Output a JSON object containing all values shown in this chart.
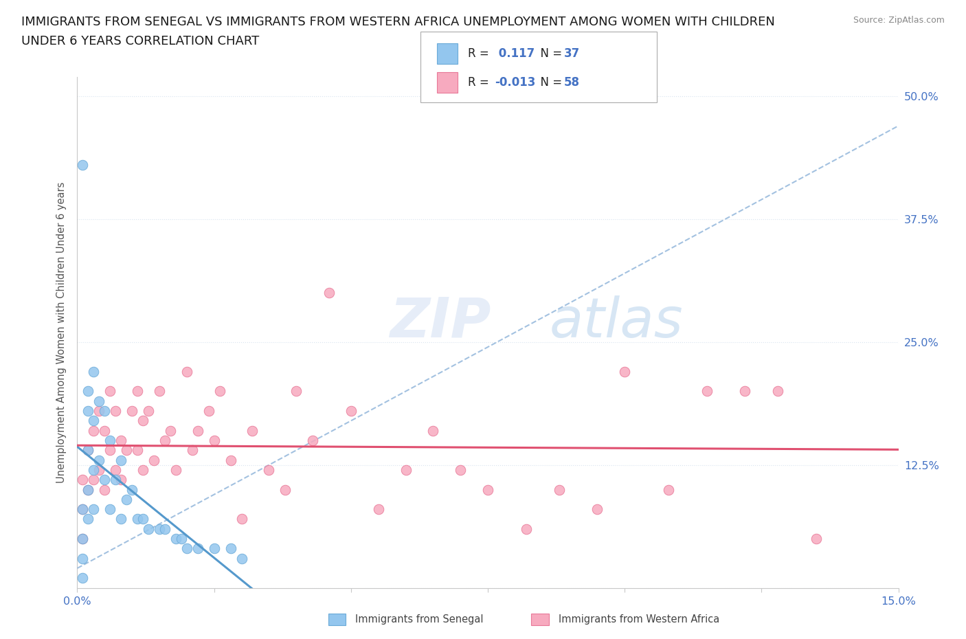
{
  "title_line1": "IMMIGRANTS FROM SENEGAL VS IMMIGRANTS FROM WESTERN AFRICA UNEMPLOYMENT AMONG WOMEN WITH CHILDREN",
  "title_line2": "UNDER 6 YEARS CORRELATION CHART",
  "source": "Source: ZipAtlas.com",
  "ylabel": "Unemployment Among Women with Children Under 6 years",
  "xlim": [
    0.0,
    0.15
  ],
  "ylim": [
    0.0,
    0.52
  ],
  "xtick_positions": [
    0.0,
    0.025,
    0.05,
    0.075,
    0.1,
    0.125,
    0.15
  ],
  "xtick_labels": [
    "0.0%",
    "",
    "",
    "",
    "",
    "",
    "15.0%"
  ],
  "ytick_positions": [
    0.0,
    0.125,
    0.25,
    0.375,
    0.5
  ],
  "ytick_labels": [
    "",
    "12.5%",
    "25.0%",
    "37.5%",
    "50.0%"
  ],
  "senegal_color": "#93C6EE",
  "senegal_edge": "#6AAAD8",
  "western_africa_color": "#F7AABF",
  "western_africa_edge": "#E87898",
  "trend_senegal_solid_color": "#5599CC",
  "trend_dashed_color": "#99BBDD",
  "trend_western_africa_color": "#E05070",
  "R_senegal": 0.117,
  "N_senegal": 37,
  "R_western_africa": -0.013,
  "N_western_africa": 58,
  "senegal_x": [
    0.001,
    0.001,
    0.001,
    0.001,
    0.001,
    0.002,
    0.002,
    0.002,
    0.002,
    0.002,
    0.003,
    0.003,
    0.003,
    0.003,
    0.004,
    0.004,
    0.005,
    0.005,
    0.006,
    0.006,
    0.007,
    0.008,
    0.008,
    0.009,
    0.01,
    0.011,
    0.012,
    0.013,
    0.015,
    0.016,
    0.018,
    0.019,
    0.02,
    0.022,
    0.025,
    0.028,
    0.03
  ],
  "senegal_y": [
    0.43,
    0.08,
    0.05,
    0.03,
    0.01,
    0.2,
    0.18,
    0.14,
    0.1,
    0.07,
    0.22,
    0.17,
    0.12,
    0.08,
    0.19,
    0.13,
    0.18,
    0.11,
    0.15,
    0.08,
    0.11,
    0.13,
    0.07,
    0.09,
    0.1,
    0.07,
    0.07,
    0.06,
    0.06,
    0.06,
    0.05,
    0.05,
    0.04,
    0.04,
    0.04,
    0.04,
    0.03
  ],
  "western_africa_x": [
    0.001,
    0.001,
    0.001,
    0.002,
    0.002,
    0.003,
    0.003,
    0.004,
    0.004,
    0.005,
    0.005,
    0.006,
    0.006,
    0.007,
    0.007,
    0.008,
    0.008,
    0.009,
    0.01,
    0.011,
    0.011,
    0.012,
    0.012,
    0.013,
    0.014,
    0.015,
    0.016,
    0.017,
    0.018,
    0.02,
    0.021,
    0.022,
    0.024,
    0.025,
    0.026,
    0.028,
    0.03,
    0.032,
    0.035,
    0.038,
    0.04,
    0.043,
    0.046,
    0.05,
    0.055,
    0.06,
    0.065,
    0.07,
    0.075,
    0.082,
    0.088,
    0.095,
    0.1,
    0.108,
    0.115,
    0.122,
    0.128,
    0.135
  ],
  "western_africa_y": [
    0.11,
    0.08,
    0.05,
    0.14,
    0.1,
    0.16,
    0.11,
    0.18,
    0.12,
    0.16,
    0.1,
    0.2,
    0.14,
    0.18,
    0.12,
    0.15,
    0.11,
    0.14,
    0.18,
    0.2,
    0.14,
    0.17,
    0.12,
    0.18,
    0.13,
    0.2,
    0.15,
    0.16,
    0.12,
    0.22,
    0.14,
    0.16,
    0.18,
    0.15,
    0.2,
    0.13,
    0.07,
    0.16,
    0.12,
    0.1,
    0.2,
    0.15,
    0.3,
    0.18,
    0.08,
    0.12,
    0.16,
    0.12,
    0.1,
    0.06,
    0.1,
    0.08,
    0.22,
    0.1,
    0.2,
    0.2,
    0.2,
    0.05
  ],
  "background_color": "#FFFFFF",
  "grid_color": "#D8E4F0",
  "title_fontsize": 13,
  "axis_label_color": "#4472C4",
  "tick_label_color": "#4472C4"
}
